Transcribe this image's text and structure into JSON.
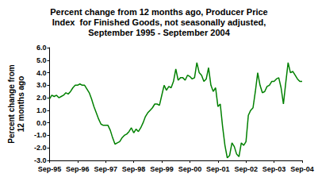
{
  "chart_data": {
    "type": "line",
    "title": "Percent change from 12 months ago, Producer Price\nIndex  for Finished Goods, not seasonally adjusted,\nSeptember 1995 - September 2004",
    "y_label": "Percent change from\n12 months ago",
    "categories": [
      "Sep-95",
      null,
      null,
      null,
      null,
      null,
      null,
      null,
      null,
      null,
      null,
      null,
      "Sep-96",
      null,
      null,
      null,
      null,
      null,
      null,
      null,
      null,
      null,
      null,
      null,
      "Sep-97",
      null,
      null,
      null,
      null,
      null,
      null,
      null,
      null,
      null,
      null,
      null,
      "Sep-98",
      null,
      null,
      null,
      null,
      null,
      null,
      null,
      null,
      null,
      null,
      null,
      "Sep-99",
      null,
      null,
      null,
      null,
      null,
      null,
      null,
      null,
      null,
      null,
      null,
      "Sep-00",
      null,
      null,
      null,
      null,
      null,
      null,
      null,
      null,
      null,
      null,
      null,
      "Sep-01",
      null,
      null,
      null,
      null,
      null,
      null,
      null,
      null,
      null,
      null,
      null,
      "Sep-02",
      null,
      null,
      null,
      null,
      null,
      null,
      null,
      null,
      null,
      null,
      null,
      "Sep-03",
      null,
      null,
      null,
      null,
      null,
      null,
      null,
      null,
      null,
      null,
      null,
      "Sep-04"
    ],
    "values": [
      1.9,
      2.2,
      2.1,
      2.2,
      2.0,
      2.1,
      2.2,
      2.4,
      2.3,
      2.5,
      2.8,
      3.0,
      3.0,
      3.1,
      3.0,
      3.0,
      2.7,
      2.4,
      1.9,
      1.3,
      0.8,
      0.3,
      -0.1,
      -0.2,
      -0.2,
      -0.2,
      -0.6,
      -1.2,
      -1.7,
      -1.6,
      -1.5,
      -1.2,
      -1.0,
      -0.9,
      -0.7,
      -0.4,
      -0.8,
      -0.5,
      -0.7,
      -0.4,
      0.0,
      0.5,
      0.8,
      1.0,
      1.2,
      1.5,
      1.5,
      1.4,
      2.2,
      3.0,
      2.6,
      2.9,
      2.8,
      3.3,
      4.3,
      3.4,
      3.6,
      3.6,
      3.4,
      3.8,
      3.7,
      3.5,
      3.6,
      4.8,
      4.0,
      3.8,
      3.3,
      3.5,
      4.4,
      3.0,
      2.5,
      2.8,
      1.3,
      1.5,
      -0.3,
      -1.8,
      -2.8,
      -2.6,
      -1.6,
      -1.9,
      -2.5,
      -2.7,
      -1.6,
      -1.8,
      -1.5,
      0.6,
      1.0,
      1.2,
      2.5,
      4.0,
      3.0,
      2.4,
      2.5,
      2.9,
      3.0,
      3.3,
      3.3,
      3.5,
      3.6,
      2.8,
      1.5,
      3.2,
      4.8,
      4.0,
      4.1,
      3.8,
      3.5,
      3.3,
      3.3
    ],
    "color": "#008000",
    "ylim": [
      -3,
      6
    ],
    "yticks": [
      {
        "value": -3,
        "label": "-3.0"
      },
      {
        "value": -2,
        "label": "-2.0"
      },
      {
        "value": -1,
        "label": "-1.0"
      },
      {
        "value": 0,
        "label": "0.0"
      },
      {
        "value": 1,
        "label": "1.0"
      },
      {
        "value": 2,
        "label": "2.0"
      },
      {
        "value": 3,
        "label": "3.0"
      },
      {
        "value": 4,
        "label": "4.0"
      },
      {
        "value": 5,
        "label": "5.0"
      },
      {
        "value": 6,
        "label": "6.0"
      }
    ],
    "grid": false
  }
}
